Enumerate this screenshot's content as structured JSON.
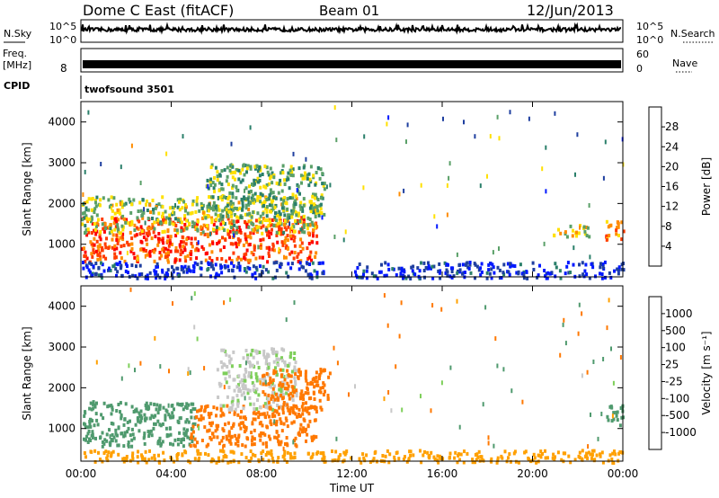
{
  "header": {
    "title": "Dome C East (fitACF)",
    "beam": "Beam 01",
    "date": "12/Jun/2013"
  },
  "noise_panel": {
    "left_label": "N.Sky",
    "right_label": "N.Search",
    "left_ticks": [
      "10^5",
      "10^0"
    ],
    "right_ticks": [
      "10^5",
      "10^0"
    ]
  },
  "freq_panel": {
    "left_label_1": "Freq.",
    "left_label_2": "[MHz]",
    "right_label": "Nave",
    "left_tick": "8",
    "right_ticks": [
      "60",
      "0"
    ]
  },
  "cpid": {
    "label": "CPID",
    "value": "twofsound 3501"
  },
  "colors": {
    "power_scale": [
      "#0018ff",
      "#1f3f9f",
      "#2a7f6a",
      "#5aa068",
      "#ffe000",
      "#ff8c00",
      "#ff3c00",
      "#ff0000"
    ],
    "velocity_scale": [
      "#ff0000",
      "#ff3c1e",
      "#ff7800",
      "#ffa000",
      "#c8c8c8",
      "#7ecf5a",
      "#4f9a6e",
      "#3a6fa0",
      "#1e3ea8"
    ]
  },
  "chart_data": [
    {
      "type": "heatmap",
      "name": "Power panel",
      "ylabel": "Slant Range [km]",
      "yticks": [
        "1000",
        "2000",
        "3000",
        "4000"
      ],
      "ylim": [
        200,
        4500
      ],
      "colorbar_label": "Power [dB]",
      "colorbar_ticks": [
        "4",
        "8",
        "12",
        "16",
        "20",
        "24",
        "28"
      ],
      "grid": false,
      "regions": [
        {
          "t0": 0.0,
          "t1": 10.4,
          "r0": 600,
          "r1": 1700,
          "value": 28
        },
        {
          "t0": 0.0,
          "t1": 10.4,
          "r0": 1300,
          "r1": 2200,
          "value": 18
        },
        {
          "t0": 5.5,
          "t1": 10.8,
          "r0": 1700,
          "r1": 3000,
          "value": 16
        },
        {
          "t0": 0.0,
          "t1": 10.8,
          "r0": 200,
          "r1": 600,
          "value": 6
        },
        {
          "t0": 12.0,
          "t1": 24.0,
          "r0": 200,
          "r1": 600,
          "value": 6
        },
        {
          "t0": 20.8,
          "t1": 22.5,
          "r0": 1200,
          "r1": 1500,
          "value": 20
        },
        {
          "t0": 23.2,
          "t1": 24.0,
          "r0": 1100,
          "r1": 1600,
          "value": 26
        }
      ]
    },
    {
      "type": "heatmap",
      "name": "Velocity panel",
      "ylabel": "Slant Range [km]",
      "yticks": [
        "1000",
        "2000",
        "3000",
        "4000"
      ],
      "ylim": [
        200,
        4500
      ],
      "colorbar_label": "Velocity [m s⁻¹]",
      "colorbar_ticks": [
        "-1000",
        "-500",
        "-100",
        "-25",
        "25",
        "100",
        "500",
        "1000"
      ],
      "grid": false,
      "xlabel": "Time UT",
      "xticks": [
        "00:00",
        "04:00",
        "08:00",
        "12:00",
        "16:00",
        "20:00",
        "00:00"
      ],
      "xlim": [
        0,
        24
      ],
      "regions": [
        {
          "t0": 0.0,
          "t1": 5.0,
          "r0": 600,
          "r1": 1700,
          "value": 300
        },
        {
          "t0": 4.8,
          "t1": 10.4,
          "r0": 600,
          "r1": 1600,
          "value": -300
        },
        {
          "t0": 6.0,
          "t1": 9.5,
          "r0": 1500,
          "r1": 3000,
          "value": 20
        },
        {
          "t0": 8.0,
          "t1": 11.0,
          "r0": 1500,
          "r1": 2500,
          "value": -150
        },
        {
          "t0": 0.0,
          "t1": 24.0,
          "r0": 200,
          "r1": 500,
          "value": -60
        },
        {
          "t0": 23.2,
          "t1": 24.0,
          "r0": 1100,
          "r1": 1600,
          "value": 300
        }
      ]
    }
  ]
}
